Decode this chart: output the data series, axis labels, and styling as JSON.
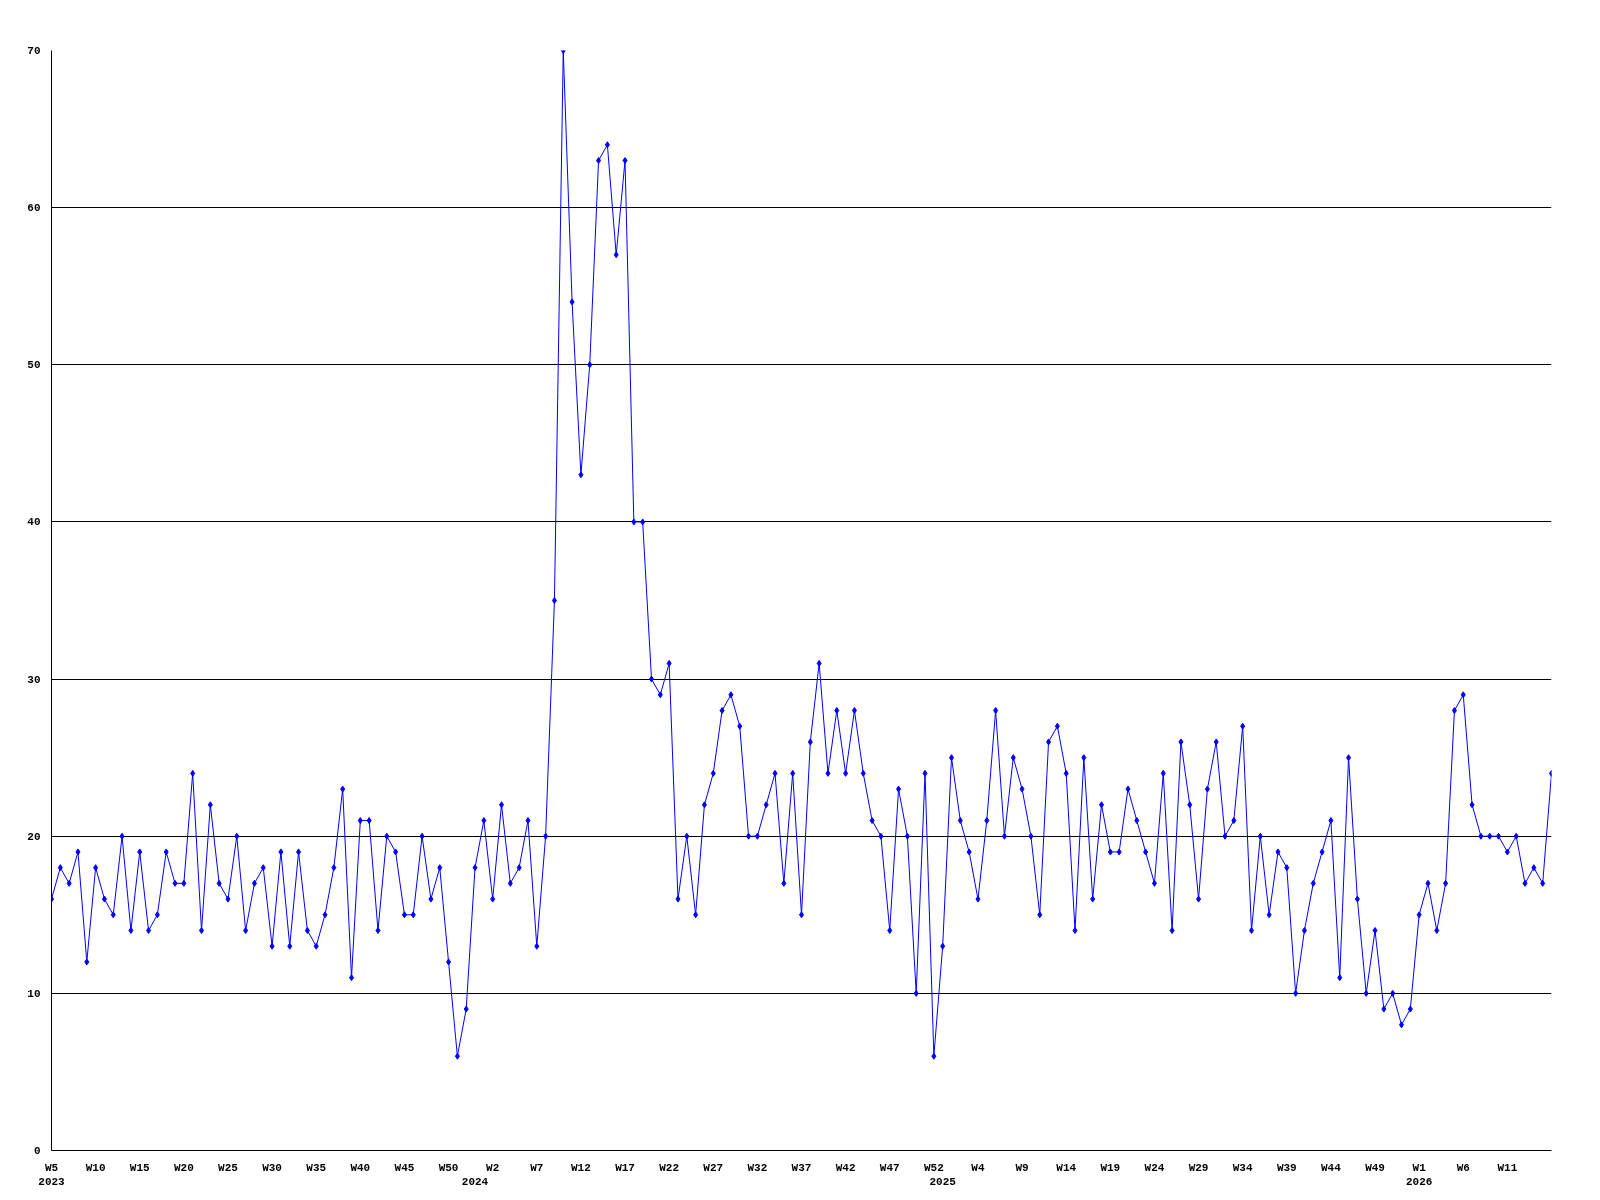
{
  "chart_data": {
    "type": "line",
    "categories": [
      "W5\n2023",
      null,
      null,
      null,
      null,
      "W10",
      null,
      null,
      null,
      null,
      "W15",
      null,
      null,
      null,
      null,
      "W20",
      null,
      null,
      null,
      null,
      "W25",
      null,
      null,
      null,
      null,
      "W30",
      null,
      null,
      null,
      null,
      "W35",
      null,
      null,
      null,
      null,
      "W40",
      null,
      null,
      null,
      null,
      "W45",
      null,
      null,
      null,
      null,
      "W50",
      null,
      null,
      "\n2024",
      null,
      "W2",
      null,
      null,
      null,
      null,
      "W7",
      null,
      null,
      null,
      null,
      "W12",
      null,
      null,
      null,
      null,
      "W17",
      null,
      null,
      null,
      null,
      "W22",
      null,
      null,
      null,
      null,
      "W27",
      null,
      null,
      null,
      null,
      "W32",
      null,
      null,
      null,
      null,
      "W37",
      null,
      null,
      null,
      null,
      "W42",
      null,
      null,
      null,
      null,
      "W47",
      null,
      null,
      null,
      null,
      "W52",
      "\n2025",
      null,
      null,
      null,
      "W4",
      null,
      null,
      null,
      null,
      "W9",
      null,
      null,
      null,
      null,
      "W14",
      null,
      null,
      null,
      null,
      "W19",
      null,
      null,
      null,
      null,
      "W24",
      null,
      null,
      null,
      null,
      "W29",
      null,
      null,
      null,
      null,
      "W34",
      null,
      null,
      null,
      null,
      "W39",
      null,
      null,
      null,
      null,
      "W44",
      null,
      null,
      null,
      null,
      "W49",
      null,
      null,
      null,
      null,
      "W1\n2026",
      null,
      null,
      null,
      null,
      "W6",
      null,
      null,
      null,
      null,
      "W11",
      null,
      null,
      null,
      null,
      null
    ],
    "series": [
      {
        "color": "#0000ff",
        "values": [
          16,
          18,
          17,
          19,
          12,
          18,
          16,
          15,
          20,
          14,
          19,
          14,
          15,
          19,
          17,
          17,
          24,
          14,
          22,
          17,
          16,
          20,
          14,
          17,
          18,
          13,
          19,
          13,
          19,
          14,
          13,
          15,
          18,
          23,
          11,
          21,
          21,
          14,
          20,
          19,
          15,
          15,
          20,
          16,
          18,
          12,
          6,
          9,
          18,
          21,
          16,
          22,
          17,
          18,
          21,
          13,
          20,
          35,
          70,
          54,
          43,
          50,
          63,
          64,
          57,
          63,
          40,
          40,
          30,
          29,
          31,
          16,
          20,
          15,
          22,
          24,
          28,
          29,
          27,
          20,
          20,
          22,
          24,
          17,
          24,
          15,
          26,
          31,
          24,
          28,
          24,
          28,
          24,
          21,
          20,
          14,
          23,
          20,
          10,
          24,
          6,
          13,
          25,
          21,
          19,
          16,
          21,
          28,
          20,
          25,
          23,
          20,
          15,
          26,
          27,
          24,
          14,
          25,
          16,
          22,
          19,
          19,
          23,
          21,
          19,
          17,
          24,
          14,
          26,
          22,
          16,
          23,
          26,
          20,
          21,
          27,
          14,
          20,
          15,
          19,
          18,
          10,
          14,
          17,
          19,
          21,
          11,
          25,
          16,
          10,
          14,
          9,
          10,
          8,
          9,
          15,
          17,
          14,
          17,
          28,
          29,
          22,
          20,
          20,
          20,
          19,
          20,
          17,
          18,
          17,
          24
        ]
      }
    ],
    "ylim": [
      0,
      70
    ],
    "yticks": [
      0,
      10,
      20,
      30,
      40,
      50,
      60,
      70
    ],
    "grid": "y",
    "marker": "diamond",
    "line_style": "solid"
  }
}
